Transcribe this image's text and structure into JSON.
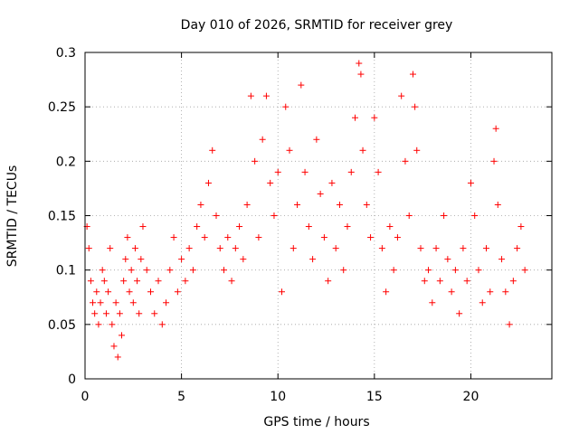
{
  "chart_data": {
    "type": "scatter",
    "title": "Day 010 of 2026, SRMTID for receiver grey",
    "xlabel": "GPS time / hours",
    "ylabel": "SRMTID / TECUs",
    "xlim": [
      0,
      24.2
    ],
    "ylim": [
      0,
      0.3
    ],
    "x_ticks": [
      0,
      5,
      10,
      15,
      20
    ],
    "x_tick_labels": [
      "0",
      "5",
      "10",
      "15",
      "20"
    ],
    "y_ticks": [
      0,
      0.05,
      0.1,
      0.15,
      0.2,
      0.25,
      0.3
    ],
    "y_tick_labels": [
      "0",
      "0.05",
      "0.1",
      "0.15",
      "0.2",
      "0.25",
      "0.3"
    ],
    "grid": true,
    "marker": "plus",
    "color": "#ff0000",
    "series": [
      {
        "name": "SRMTID",
        "points": [
          [
            0.1,
            0.14
          ],
          [
            0.2,
            0.12
          ],
          [
            0.3,
            0.09
          ],
          [
            0.4,
            0.07
          ],
          [
            0.5,
            0.06
          ],
          [
            0.6,
            0.08
          ],
          [
            0.7,
            0.05
          ],
          [
            0.8,
            0.07
          ],
          [
            0.9,
            0.1
          ],
          [
            1.0,
            0.09
          ],
          [
            1.1,
            0.06
          ],
          [
            1.2,
            0.08
          ],
          [
            1.3,
            0.12
          ],
          [
            1.4,
            0.05
          ],
          [
            1.5,
            0.03
          ],
          [
            1.6,
            0.07
          ],
          [
            1.7,
            0.02
          ],
          [
            1.8,
            0.06
          ],
          [
            1.9,
            0.04
          ],
          [
            2.0,
            0.09
          ],
          [
            2.1,
            0.11
          ],
          [
            2.2,
            0.13
          ],
          [
            2.3,
            0.08
          ],
          [
            2.4,
            0.1
          ],
          [
            2.5,
            0.07
          ],
          [
            2.6,
            0.12
          ],
          [
            2.7,
            0.09
          ],
          [
            2.8,
            0.06
          ],
          [
            2.9,
            0.11
          ],
          [
            3.0,
            0.14
          ],
          [
            3.2,
            0.1
          ],
          [
            3.4,
            0.08
          ],
          [
            3.6,
            0.06
          ],
          [
            3.8,
            0.09
          ],
          [
            4.0,
            0.05
          ],
          [
            4.2,
            0.07
          ],
          [
            4.4,
            0.1
          ],
          [
            4.6,
            0.13
          ],
          [
            4.8,
            0.08
          ],
          [
            5.0,
            0.11
          ],
          [
            5.2,
            0.09
          ],
          [
            5.4,
            0.12
          ],
          [
            5.6,
            0.1
          ],
          [
            5.8,
            0.14
          ],
          [
            6.0,
            0.16
          ],
          [
            6.2,
            0.13
          ],
          [
            6.4,
            0.18
          ],
          [
            6.6,
            0.21
          ],
          [
            6.8,
            0.15
          ],
          [
            7.0,
            0.12
          ],
          [
            7.2,
            0.1
          ],
          [
            7.4,
            0.13
          ],
          [
            7.6,
            0.09
          ],
          [
            7.8,
            0.12
          ],
          [
            8.0,
            0.14
          ],
          [
            8.2,
            0.11
          ],
          [
            8.4,
            0.16
          ],
          [
            8.6,
            0.26
          ],
          [
            8.8,
            0.2
          ],
          [
            9.0,
            0.13
          ],
          [
            9.2,
            0.22
          ],
          [
            9.4,
            0.26
          ],
          [
            9.6,
            0.18
          ],
          [
            9.8,
            0.15
          ],
          [
            10.0,
            0.19
          ],
          [
            10.2,
            0.08
          ],
          [
            10.4,
            0.25
          ],
          [
            10.6,
            0.21
          ],
          [
            10.8,
            0.12
          ],
          [
            11.0,
            0.16
          ],
          [
            11.2,
            0.27
          ],
          [
            11.4,
            0.19
          ],
          [
            11.6,
            0.14
          ],
          [
            11.8,
            0.11
          ],
          [
            12.0,
            0.22
          ],
          [
            12.2,
            0.17
          ],
          [
            12.4,
            0.13
          ],
          [
            12.6,
            0.09
          ],
          [
            12.8,
            0.18
          ],
          [
            13.0,
            0.12
          ],
          [
            13.2,
            0.16
          ],
          [
            13.4,
            0.1
          ],
          [
            13.6,
            0.14
          ],
          [
            13.8,
            0.19
          ],
          [
            14.0,
            0.24
          ],
          [
            14.2,
            0.29
          ],
          [
            14.3,
            0.28
          ],
          [
            14.4,
            0.21
          ],
          [
            14.6,
            0.16
          ],
          [
            14.8,
            0.13
          ],
          [
            15.0,
            0.24
          ],
          [
            15.2,
            0.19
          ],
          [
            15.4,
            0.12
          ],
          [
            15.6,
            0.08
          ],
          [
            15.8,
            0.14
          ],
          [
            16.0,
            0.1
          ],
          [
            16.2,
            0.13
          ],
          [
            16.4,
            0.26
          ],
          [
            16.6,
            0.2
          ],
          [
            16.8,
            0.15
          ],
          [
            17.0,
            0.28
          ],
          [
            17.1,
            0.25
          ],
          [
            17.2,
            0.21
          ],
          [
            17.4,
            0.12
          ],
          [
            17.6,
            0.09
          ],
          [
            17.8,
            0.1
          ],
          [
            18.0,
            0.07
          ],
          [
            18.2,
            0.12
          ],
          [
            18.4,
            0.09
          ],
          [
            18.6,
            0.15
          ],
          [
            18.8,
            0.11
          ],
          [
            19.0,
            0.08
          ],
          [
            19.2,
            0.1
          ],
          [
            19.4,
            0.06
          ],
          [
            19.6,
            0.12
          ],
          [
            19.8,
            0.09
          ],
          [
            20.0,
            0.18
          ],
          [
            20.2,
            0.15
          ],
          [
            20.4,
            0.1
          ],
          [
            20.6,
            0.07
          ],
          [
            20.8,
            0.12
          ],
          [
            21.0,
            0.08
          ],
          [
            21.2,
            0.2
          ],
          [
            21.3,
            0.23
          ],
          [
            21.4,
            0.16
          ],
          [
            21.6,
            0.11
          ],
          [
            21.8,
            0.08
          ],
          [
            22.0,
            0.05
          ],
          [
            22.2,
            0.09
          ],
          [
            22.4,
            0.12
          ],
          [
            22.6,
            0.14
          ],
          [
            22.8,
            0.1
          ]
        ]
      }
    ]
  }
}
